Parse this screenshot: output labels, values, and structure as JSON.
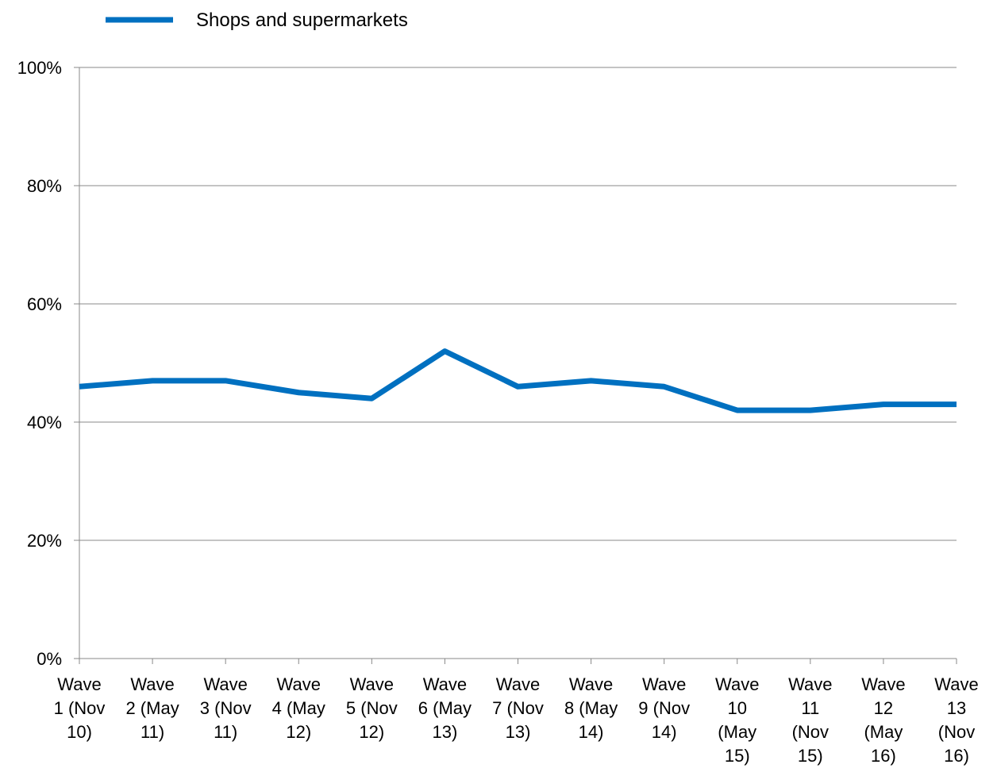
{
  "chart_data": {
    "type": "line",
    "title": "",
    "xlabel": "",
    "ylabel": "",
    "ylim": [
      0,
      100
    ],
    "y_ticks": [
      "0%",
      "20%",
      "40%",
      "60%",
      "80%",
      "100%"
    ],
    "y_tick_values": [
      0,
      20,
      40,
      60,
      80,
      100
    ],
    "grid": true,
    "legend_position": "top-left",
    "categories": [
      [
        "Wave",
        "1 (Nov",
        "10)"
      ],
      [
        "Wave",
        "2 (May",
        "11)"
      ],
      [
        "Wave",
        "3 (Nov",
        "11)"
      ],
      [
        "Wave",
        "4 (May",
        "12)"
      ],
      [
        "Wave",
        "5 (Nov",
        "12)"
      ],
      [
        "Wave",
        "6 (May",
        "13)"
      ],
      [
        "Wave",
        "7 (Nov",
        "13)"
      ],
      [
        "Wave",
        "8 (May",
        "14)"
      ],
      [
        "Wave",
        "9 (Nov",
        "14)"
      ],
      [
        "Wave",
        "10",
        "(May",
        "15)"
      ],
      [
        "Wave",
        "11",
        "(Nov",
        "15)"
      ],
      [
        "Wave",
        "12",
        "(May",
        "16)"
      ],
      [
        "Wave",
        "13",
        "(Nov",
        "16)"
      ]
    ],
    "series": [
      {
        "name": "Shops and supermarkets",
        "color": "#0070C0",
        "values": [
          46,
          47,
          47,
          45,
          44,
          52,
          46,
          47,
          46,
          42,
          42,
          43,
          43
        ]
      }
    ]
  }
}
